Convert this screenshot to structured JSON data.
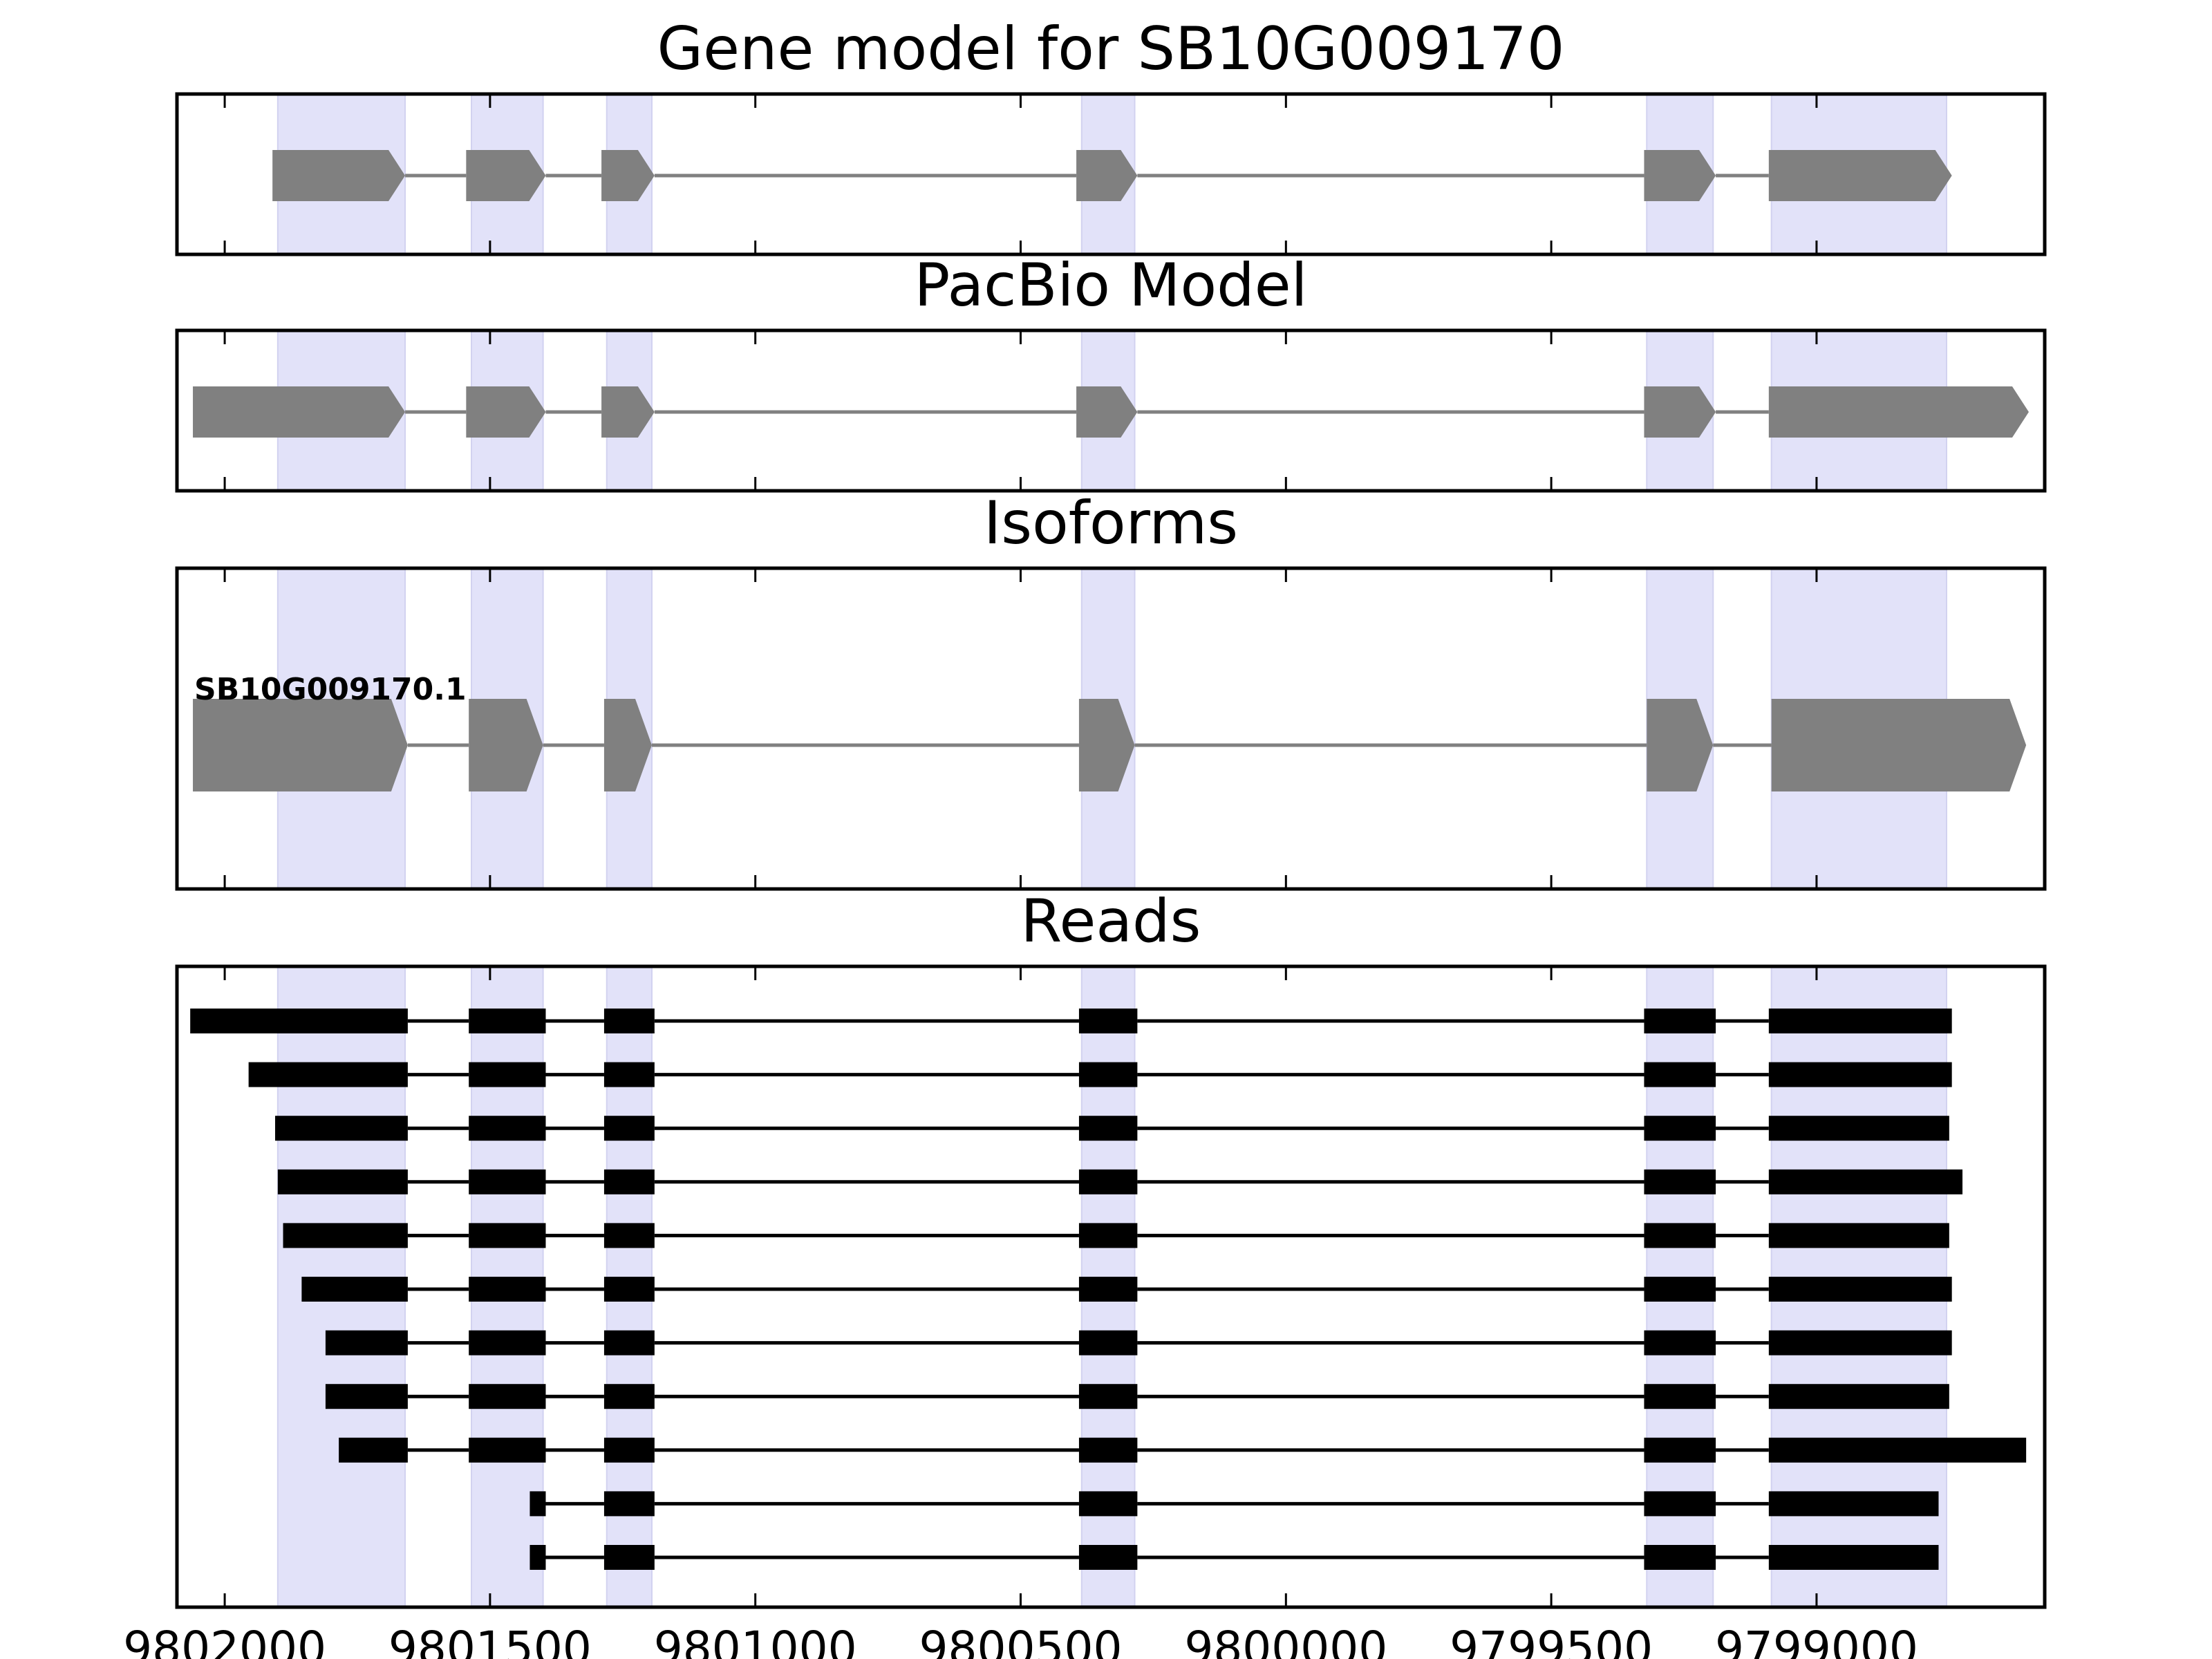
{
  "chart_data": {
    "type": "gene-structure",
    "x_axis": {
      "reversed": true,
      "range": [
        9802090,
        9798570
      ],
      "ticks": [
        9802000,
        9801500,
        9801000,
        9800500,
        9800000,
        9799500,
        9799000
      ],
      "tick_labels": [
        "9802000",
        "9801500",
        "9801000",
        "9800500",
        "9800000",
        "9799500",
        "9799000"
      ]
    },
    "highlight_color": "#e2e2f9",
    "model_color": "#808080",
    "read_color": "#000000",
    "highlight_regions": [
      [
        9801900,
        9801660
      ],
      [
        9801535,
        9801400
      ],
      [
        9801280,
        9801195
      ],
      [
        9800385,
        9800285
      ],
      [
        9799320,
        9799195
      ],
      [
        9799085,
        9798755
      ]
    ],
    "panels": [
      {
        "title": "Gene model for SB10G009170",
        "kind": "model",
        "transcripts": [
          {
            "label": "",
            "exons": [
              [
                9801910,
                9801660
              ],
              [
                9801545,
                9801395
              ],
              [
                9801290,
                9801190
              ],
              [
                9800395,
                9800280
              ],
              [
                9799325,
                9799190
              ],
              [
                9799090,
                9798745
              ]
            ]
          }
        ]
      },
      {
        "title": "PacBio Model",
        "kind": "model",
        "transcripts": [
          {
            "label": "",
            "exons": [
              [
                9802060,
                9801660
              ],
              [
                9801545,
                9801395
              ],
              [
                9801290,
                9801190
              ],
              [
                9800395,
                9800280
              ],
              [
                9799325,
                9799190
              ],
              [
                9799090,
                9798600
              ]
            ]
          }
        ]
      },
      {
        "title": "Isoforms",
        "kind": "isoform",
        "transcripts": [
          {
            "label": "SB10G009170.1",
            "exons": [
              [
                9802060,
                9801655
              ],
              [
                9801540,
                9801400
              ],
              [
                9801285,
                9801195
              ],
              [
                9800390,
                9800285
              ],
              [
                9799320,
                9799195
              ],
              [
                9799085,
                9798605
              ]
            ]
          }
        ]
      },
      {
        "title": "Reads",
        "kind": "reads",
        "reads": [
          [
            [
              9802065,
              9801655
            ],
            [
              9801540,
              9801395
            ],
            [
              9801285,
              9801190
            ],
            [
              9800390,
              9800280
            ],
            [
              9799325,
              9799190
            ],
            [
              9799090,
              9798745
            ]
          ],
          [
            [
              9801955,
              9801655
            ],
            [
              9801540,
              9801395
            ],
            [
              9801285,
              9801190
            ],
            [
              9800390,
              9800280
            ],
            [
              9799325,
              9799190
            ],
            [
              9799090,
              9798745
            ]
          ],
          [
            [
              9801905,
              9801655
            ],
            [
              9801540,
              9801395
            ],
            [
              9801285,
              9801190
            ],
            [
              9800390,
              9800280
            ],
            [
              9799325,
              9799190
            ],
            [
              9799090,
              9798750
            ]
          ],
          [
            [
              9801900,
              9801655
            ],
            [
              9801540,
              9801395
            ],
            [
              9801285,
              9801190
            ],
            [
              9800390,
              9800280
            ],
            [
              9799325,
              9799190
            ],
            [
              9799090,
              9798725
            ]
          ],
          [
            [
              9801890,
              9801655
            ],
            [
              9801540,
              9801395
            ],
            [
              9801285,
              9801190
            ],
            [
              9800390,
              9800280
            ],
            [
              9799325,
              9799190
            ],
            [
              9799090,
              9798750
            ]
          ],
          [
            [
              9801855,
              9801655
            ],
            [
              9801540,
              9801395
            ],
            [
              9801285,
              9801190
            ],
            [
              9800390,
              9800280
            ],
            [
              9799325,
              9799190
            ],
            [
              9799090,
              9798745
            ]
          ],
          [
            [
              9801810,
              9801655
            ],
            [
              9801540,
              9801395
            ],
            [
              9801285,
              9801190
            ],
            [
              9800390,
              9800280
            ],
            [
              9799325,
              9799190
            ],
            [
              9799090,
              9798745
            ]
          ],
          [
            [
              9801810,
              9801655
            ],
            [
              9801540,
              9801395
            ],
            [
              9801285,
              9801190
            ],
            [
              9800390,
              9800280
            ],
            [
              9799325,
              9799190
            ],
            [
              9799090,
              9798750
            ]
          ],
          [
            [
              9801785,
              9801655
            ],
            [
              9801540,
              9801395
            ],
            [
              9801285,
              9801190
            ],
            [
              9800390,
              9800280
            ],
            [
              9799325,
              9799190
            ],
            [
              9799090,
              9798605
            ]
          ],
          [
            [
              9801425,
              9801395
            ],
            [
              9801285,
              9801190
            ],
            [
              9800390,
              9800280
            ],
            [
              9799325,
              9799190
            ],
            [
              9799090,
              9798770
            ]
          ],
          [
            [
              9801425,
              9801395
            ],
            [
              9801285,
              9801190
            ],
            [
              9800390,
              9800280
            ],
            [
              9799325,
              9799190
            ],
            [
              9799090,
              9798770
            ]
          ]
        ]
      }
    ]
  }
}
